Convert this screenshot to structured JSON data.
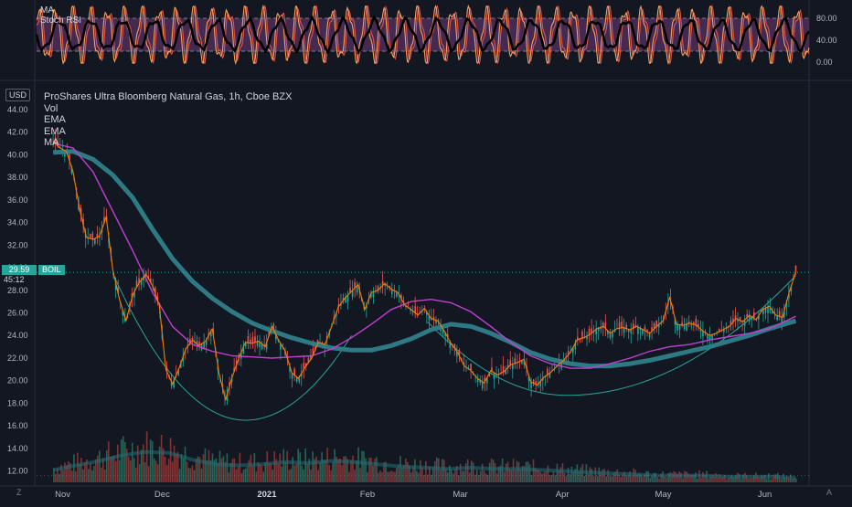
{
  "rsi_panel": {
    "labels": [
      "MA",
      "Stoch RSI"
    ],
    "ticks": [
      "80.00",
      "40.00",
      "0.00"
    ],
    "colors": {
      "bg": "#4a2b55",
      "k": "#f7a35c",
      "d": "#e0514f",
      "ma": "#000000",
      "band": "#787b86"
    }
  },
  "main_panel": {
    "title": "ProShares Ultra Bloomberg Natural Gas, 1h, Cboe BZX",
    "indicator_labels": [
      "Vol",
      "EMA",
      "EMA",
      "MA"
    ],
    "currency": "USD",
    "symbol": "BOIL",
    "last_price": "29.59",
    "countdown": "45:12"
  },
  "chart_data": {
    "type": "line",
    "price_ticks": [
      "44.00",
      "42.00",
      "40.00",
      "38.00",
      "36.00",
      "34.00",
      "32.00",
      "30.00",
      "28.00",
      "26.00",
      "24.00",
      "22.00",
      "20.00",
      "18.00",
      "16.00",
      "14.00",
      "12.00"
    ],
    "ylim": [
      11.0,
      44.8
    ],
    "x_ticks": [
      "Nov",
      "Dec",
      "2021",
      "Feb",
      "Mar",
      "Apr",
      "May",
      "Jun"
    ],
    "x_tick_days": [
      0,
      30,
      61,
      92,
      120,
      151,
      181,
      212
    ],
    "xlim_days": [
      -5,
      228
    ],
    "series": [
      {
        "name": "",
        "role": "price",
        "color": "#f57c00",
        "x": [
          0,
          2,
          4,
          6,
          8,
          10,
          12,
          14,
          16,
          18,
          20,
          22,
          24,
          26,
          28,
          30,
          32,
          34,
          36,
          38,
          40,
          42,
          44,
          46,
          48,
          50,
          52,
          54,
          56,
          58,
          60,
          62,
          64,
          66,
          68,
          70,
          72,
          74,
          76,
          78,
          80,
          82,
          84,
          86,
          88,
          90,
          92,
          94,
          96,
          98,
          100,
          102,
          104,
          106,
          108,
          110,
          112,
          114,
          116,
          118,
          120,
          122,
          124,
          126,
          128,
          130,
          132,
          134,
          136,
          138,
          140,
          142,
          144,
          146,
          148,
          150,
          152,
          154,
          156,
          158,
          160,
          162,
          164,
          166,
          168,
          170,
          172,
          174,
          176,
          178,
          180,
          182,
          184,
          186,
          188,
          190,
          192,
          194,
          196,
          198,
          200,
          202,
          204,
          206,
          208,
          210,
          212,
          214,
          216,
          218,
          220,
          222,
          224
        ],
        "y": [
          41.2,
          40.6,
          40.3,
          38.5,
          35.2,
          32.7,
          32.5,
          32.8,
          34.5,
          29.8,
          27.2,
          25.3,
          27.6,
          28.7,
          29.4,
          28.4,
          26.7,
          21.0,
          19.7,
          21.1,
          22.8,
          23.6,
          23.1,
          23.5,
          24.6,
          20.7,
          18.3,
          20.3,
          22.0,
          23.4,
          23.3,
          23.5,
          23.0,
          24.8,
          23.6,
          22.6,
          20.7,
          20.2,
          21.2,
          22.0,
          23.4,
          23.2,
          24.8,
          26.5,
          27.3,
          27.9,
          28.5,
          26.3,
          27.8,
          28.0,
          28.6,
          28.1,
          27.8,
          26.7,
          26.3,
          25.8,
          26.4,
          25.5,
          25.3,
          24.4,
          23.3,
          22.5,
          21.3,
          20.9,
          20.2,
          19.8,
          20.9,
          20.5,
          20.8,
          21.4,
          21.6,
          21.9,
          19.9,
          19.6,
          20.3,
          20.7,
          21.3,
          21.8,
          22.5,
          23.6,
          23.8,
          24.1,
          24.6,
          24.8,
          24.2,
          24.6,
          24.7,
          24.5,
          24.8,
          24.5,
          24.2,
          24.8,
          25.3,
          27.4,
          25.0,
          24.9,
          25.1,
          24.9,
          24.4,
          24.0,
          24.2,
          24.5,
          24.8,
          25.5,
          25.2,
          25.8,
          25.4,
          26.3,
          26.6,
          25.8,
          25.6,
          27.8,
          29.6
        ]
      },
      {
        "name": "",
        "role": "ema_fast",
        "color": "#c33fd1",
        "x": [
          0,
          6,
          12,
          18,
          24,
          30,
          36,
          42,
          48,
          54,
          60,
          66,
          72,
          78,
          84,
          90,
          96,
          102,
          108,
          114,
          120,
          126,
          132,
          138,
          144,
          150,
          156,
          162,
          168,
          174,
          180,
          186,
          192,
          198,
          204,
          210,
          216,
          224
        ],
        "y": [
          41.0,
          40.6,
          38.5,
          35.0,
          31.5,
          27.8,
          24.8,
          23.2,
          22.6,
          22.2,
          22.1,
          22.0,
          22.1,
          22.2,
          22.8,
          23.8,
          25.0,
          26.3,
          27.0,
          27.2,
          26.9,
          26.1,
          24.8,
          23.4,
          22.2,
          21.5,
          21.1,
          21.1,
          21.5,
          22.0,
          22.6,
          23.0,
          23.2,
          23.6,
          23.9,
          24.2,
          24.6,
          25.7
        ]
      },
      {
        "name": "",
        "role": "ma_slow",
        "color": "#2e7f8a",
        "x": [
          0,
          6,
          12,
          18,
          24,
          30,
          36,
          42,
          48,
          54,
          60,
          66,
          72,
          78,
          84,
          90,
          96,
          102,
          108,
          114,
          120,
          126,
          132,
          138,
          144,
          150,
          156,
          162,
          168,
          174,
          180,
          186,
          192,
          198,
          204,
          210,
          216,
          224
        ],
        "y": [
          40.2,
          40.3,
          39.6,
          38.2,
          36.2,
          33.4,
          30.8,
          28.8,
          27.3,
          26.1,
          25.1,
          24.4,
          23.8,
          23.3,
          22.9,
          22.7,
          22.7,
          23.1,
          23.7,
          24.5,
          25.0,
          24.8,
          24.2,
          23.4,
          22.5,
          21.9,
          21.5,
          21.3,
          21.3,
          21.5,
          21.8,
          22.2,
          22.6,
          23.0,
          23.5,
          24.0,
          24.6,
          25.3
        ]
      },
      {
        "name": "",
        "role": "volume",
        "color": "#26a69a",
        "x": [
          0,
          7,
          14,
          21,
          28,
          35,
          42,
          49,
          56,
          63,
          70,
          77,
          84,
          91,
          98,
          105,
          112,
          119,
          126,
          133,
          140,
          147,
          154,
          161,
          168,
          175,
          182,
          189,
          196,
          203,
          210,
          217,
          224
        ],
        "y": [
          12.1,
          12.5,
          12.9,
          13.4,
          13.7,
          13.6,
          13.0,
          12.6,
          12.5,
          12.6,
          12.8,
          12.7,
          12.9,
          12.8,
          12.6,
          12.4,
          12.3,
          12.2,
          12.3,
          12.2,
          12.2,
          12.1,
          12.0,
          11.9,
          11.8,
          11.7,
          11.6,
          11.6,
          11.6,
          11.5,
          11.5,
          11.5,
          11.4
        ]
      }
    ],
    "cup_curves": [
      {
        "from_day": 18,
        "to_day": 90,
        "bottom_day": 58,
        "bottom_price": 16.5,
        "start_price": 29.5,
        "end_price": 24.0
      },
      {
        "from_day": 113,
        "to_day": 224,
        "bottom_day": 155,
        "bottom_price": 18.7,
        "start_price": 25.2,
        "end_price": 29.3
      }
    ],
    "last_price_line": 29.59,
    "rsi": {
      "range": [
        -10,
        100
      ],
      "upper_band": 80,
      "lower_band": 20
    }
  }
}
